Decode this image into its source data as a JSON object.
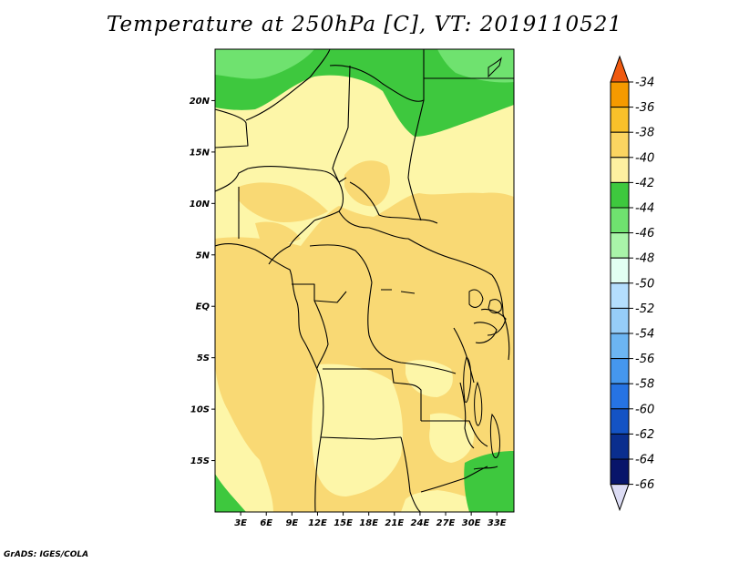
{
  "title": "Temperature at 250hPa [C], VT: 2019110521",
  "credit": "GrADS: IGES/COLA",
  "map": {
    "lon_range": [
      0,
      35
    ],
    "lat_range": [
      -20,
      25
    ],
    "lat_ticks": [
      {
        "value": 20,
        "label": "20N"
      },
      {
        "value": 15,
        "label": "15N"
      },
      {
        "value": 10,
        "label": "10N"
      },
      {
        "value": 5,
        "label": "5N"
      },
      {
        "value": 0,
        "label": "EQ"
      },
      {
        "value": -5,
        "label": "5S"
      },
      {
        "value": -10,
        "label": "10S"
      },
      {
        "value": -15,
        "label": "15S"
      }
    ],
    "lon_ticks": [
      {
        "value": 3,
        "label": "3E"
      },
      {
        "value": 6,
        "label": "6E"
      },
      {
        "value": 9,
        "label": "9E"
      },
      {
        "value": 12,
        "label": "12E"
      },
      {
        "value": 15,
        "label": "15E"
      },
      {
        "value": 18,
        "label": "18E"
      },
      {
        "value": 21,
        "label": "21E"
      },
      {
        "value": 24,
        "label": "24E"
      },
      {
        "value": 27,
        "label": "27E"
      },
      {
        "value": 30,
        "label": "30E"
      },
      {
        "value": 33,
        "label": "33E"
      }
    ]
  },
  "colorbar": {
    "levels": [
      "-34",
      "-36",
      "-38",
      "-40",
      "-42",
      "-44",
      "-46",
      "-48",
      "-50",
      "-52",
      "-54",
      "-56",
      "-58",
      "-60",
      "-62",
      "-64",
      "-66"
    ],
    "colors": [
      "#f05a10",
      "#f59a00",
      "#f9c12a",
      "#fbd561",
      "#fdf0a0",
      "#3ec83e",
      "#6fe26f",
      "#a9f4a9",
      "#e2fff2",
      "#b4defd",
      "#96cdf8",
      "#6cb5f2",
      "#4597ee",
      "#2673e3",
      "#1453c4",
      "#0a2e8e",
      "#08156a",
      "#dcdcf4"
    ]
  }
}
